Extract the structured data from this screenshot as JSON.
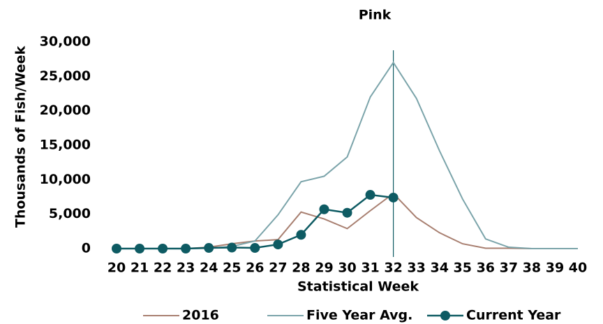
{
  "chart_data": {
    "type": "line",
    "title": "Pink",
    "x_label": "Statistical Week",
    "y_label": "Thousands of Fish/Week",
    "x": [
      20,
      21,
      22,
      23,
      24,
      25,
      26,
      27,
      28,
      29,
      30,
      31,
      32,
      33,
      34,
      35,
      36,
      37,
      38,
      39,
      40
    ],
    "xlim": [
      20,
      40
    ],
    "ylim": [
      0,
      30000
    ],
    "yticks": [
      {
        "value": 0,
        "label": "0"
      },
      {
        "value": 5000,
        "label": "5,000"
      },
      {
        "value": 10000,
        "label": "10,000"
      },
      {
        "value": 15000,
        "label": "15,000"
      },
      {
        "value": 20000,
        "label": "20,000"
      },
      {
        "value": 25000,
        "label": "25,000"
      },
      {
        "value": 30000,
        "label": "30,000"
      }
    ],
    "vline": 32,
    "series": [
      {
        "name": "2016",
        "color": "#a87f70",
        "marker": false,
        "values": [
          0,
          0,
          0,
          0,
          200,
          700,
          1100,
          1300,
          5300,
          4300,
          2900,
          5500,
          8000,
          4500,
          2300,
          700,
          50,
          50,
          0,
          0,
          0
        ]
      },
      {
        "name": "Five Year Avg.",
        "color": "#7ba4aa",
        "marker": false,
        "values": [
          0,
          0,
          0,
          0,
          50,
          300,
          1100,
          4900,
          9700,
          10500,
          13300,
          22000,
          27000,
          21800,
          14200,
          7200,
          1400,
          200,
          0,
          0,
          0
        ]
      },
      {
        "name": "Current Year",
        "color": "#0e5b63",
        "marker": true,
        "values": [
          0,
          0,
          0,
          0,
          100,
          150,
          100,
          600,
          2000,
          5700,
          5200,
          7800,
          7400,
          null,
          null,
          null,
          null,
          null,
          null,
          null,
          null
        ]
      }
    ]
  }
}
